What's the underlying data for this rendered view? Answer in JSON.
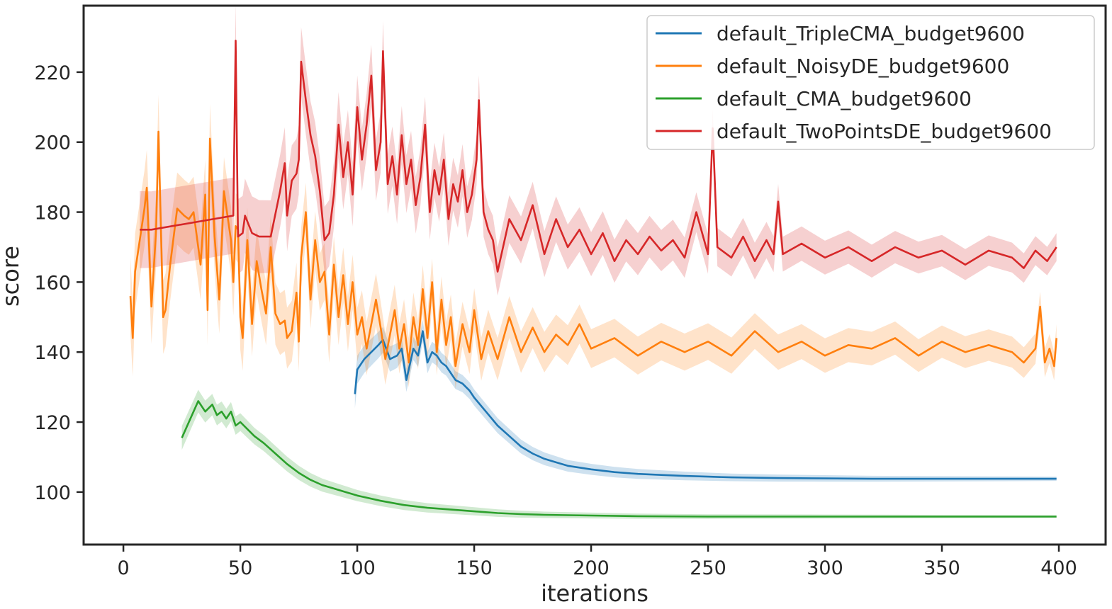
{
  "chart_data": {
    "type": "line",
    "title": "",
    "xlabel": "iterations",
    "ylabel": "score",
    "xlim": [
      -17,
      420
    ],
    "ylim": [
      85,
      239
    ],
    "xticks": [
      0,
      50,
      100,
      150,
      200,
      250,
      300,
      350,
      400
    ],
    "yticks": [
      100,
      120,
      140,
      160,
      180,
      200,
      220
    ],
    "grid": false,
    "legend_position": "top-right",
    "band": "shaded confidence band around each series",
    "series": [
      {
        "name": "default_TripleCMA_budget9600",
        "color": "#1f77b4",
        "points": [
          [
            99,
            128
          ],
          [
            100,
            135
          ],
          [
            103,
            138
          ],
          [
            106,
            140
          ],
          [
            109,
            142
          ],
          [
            111,
            143.5
          ],
          [
            114,
            138
          ],
          [
            117,
            139
          ],
          [
            119,
            141
          ],
          [
            121,
            132
          ],
          [
            124,
            141
          ],
          [
            126,
            139
          ],
          [
            128,
            146
          ],
          [
            130,
            137
          ],
          [
            132,
            140
          ],
          [
            134,
            139
          ],
          [
            136,
            137
          ],
          [
            138,
            136
          ],
          [
            140,
            134
          ],
          [
            142,
            132
          ],
          [
            145,
            131
          ],
          [
            148,
            129
          ],
          [
            150,
            127
          ],
          [
            155,
            123
          ],
          [
            160,
            119
          ],
          [
            165,
            116
          ],
          [
            170,
            113
          ],
          [
            175,
            111
          ],
          [
            180,
            109.5
          ],
          [
            185,
            108.5
          ],
          [
            190,
            107.5
          ],
          [
            200,
            106.5
          ],
          [
            210,
            105.7
          ],
          [
            220,
            105.2
          ],
          [
            230,
            104.9
          ],
          [
            240,
            104.6
          ],
          [
            250,
            104.4
          ],
          [
            260,
            104.2
          ],
          [
            280,
            104
          ],
          [
            300,
            103.9
          ],
          [
            320,
            103.8
          ],
          [
            350,
            103.8
          ],
          [
            380,
            103.8
          ],
          [
            399,
            103.8
          ]
        ]
      },
      {
        "name": "default_NoisyDE_budget9600",
        "color": "#ff7f0e",
        "points": [
          [
            3,
            156
          ],
          [
            4,
            144
          ],
          [
            5,
            163
          ],
          [
            9,
            181
          ],
          [
            10,
            187
          ],
          [
            12,
            153
          ],
          [
            14,
            175
          ],
          [
            15,
            203
          ],
          [
            17,
            150
          ],
          [
            18,
            152
          ],
          [
            20,
            165
          ],
          [
            23,
            181
          ],
          [
            26,
            179
          ],
          [
            28,
            178
          ],
          [
            30,
            180
          ],
          [
            33,
            165
          ],
          [
            35,
            185
          ],
          [
            36,
            152
          ],
          [
            37,
            201
          ],
          [
            39,
            173
          ],
          [
            41,
            155
          ],
          [
            43,
            186
          ],
          [
            46,
            172
          ],
          [
            47,
            160
          ],
          [
            48,
            176
          ],
          [
            49,
            175
          ],
          [
            50,
            150
          ],
          [
            51,
            144
          ],
          [
            53,
            172
          ],
          [
            55,
            148
          ],
          [
            57,
            166
          ],
          [
            59,
            158
          ],
          [
            61,
            151
          ],
          [
            63,
            170
          ],
          [
            65,
            151
          ],
          [
            67,
            148
          ],
          [
            69,
            149
          ],
          [
            70,
            144
          ],
          [
            72,
            146
          ],
          [
            74,
            157
          ],
          [
            75,
            143
          ],
          [
            76,
            167
          ],
          [
            78,
            180
          ],
          [
            80,
            155
          ],
          [
            82,
            172
          ],
          [
            84,
            160
          ],
          [
            86,
            163
          ],
          [
            88,
            145
          ],
          [
            90,
            165
          ],
          [
            92,
            150
          ],
          [
            94,
            162
          ],
          [
            96,
            148
          ],
          [
            98,
            160
          ],
          [
            100,
            145
          ],
          [
            102,
            150
          ],
          [
            104,
            141
          ],
          [
            106,
            148
          ],
          [
            108,
            155
          ],
          [
            110,
            147
          ],
          [
            112,
            138
          ],
          [
            114,
            145
          ],
          [
            116,
            152
          ],
          [
            118,
            141
          ],
          [
            120,
            148
          ],
          [
            122,
            137
          ],
          [
            124,
            150
          ],
          [
            126,
            142
          ],
          [
            128,
            158
          ],
          [
            130,
            144
          ],
          [
            132,
            160
          ],
          [
            134,
            140
          ],
          [
            136,
            155
          ],
          [
            138,
            142
          ],
          [
            140,
            150
          ],
          [
            142,
            136
          ],
          [
            145,
            148
          ],
          [
            148,
            140
          ],
          [
            150,
            152
          ],
          [
            153,
            138
          ],
          [
            156,
            146
          ],
          [
            160,
            138
          ],
          [
            165,
            150
          ],
          [
            170,
            140
          ],
          [
            175,
            147
          ],
          [
            180,
            140
          ],
          [
            185,
            145
          ],
          [
            190,
            142
          ],
          [
            195,
            148
          ],
          [
            200,
            141
          ],
          [
            210,
            144
          ],
          [
            220,
            139
          ],
          [
            230,
            143
          ],
          [
            240,
            140
          ],
          [
            250,
            143
          ],
          [
            260,
            139
          ],
          [
            270,
            146
          ],
          [
            280,
            140
          ],
          [
            290,
            143
          ],
          [
            300,
            139
          ],
          [
            310,
            142
          ],
          [
            320,
            141
          ],
          [
            330,
            144
          ],
          [
            340,
            139
          ],
          [
            350,
            143
          ],
          [
            360,
            140
          ],
          [
            370,
            142
          ],
          [
            380,
            140
          ],
          [
            385,
            137
          ],
          [
            390,
            141
          ],
          [
            392,
            153
          ],
          [
            394,
            137
          ],
          [
            396,
            141
          ],
          [
            398,
            136
          ],
          [
            399,
            144
          ]
        ]
      },
      {
        "name": "default_CMA_budget9600",
        "color": "#2ca02c",
        "points": [
          [
            25,
            115.5
          ],
          [
            28,
            120
          ],
          [
            32,
            126
          ],
          [
            35,
            123
          ],
          [
            38,
            125
          ],
          [
            40,
            122
          ],
          [
            42,
            123
          ],
          [
            44,
            121
          ],
          [
            46,
            123
          ],
          [
            48,
            119
          ],
          [
            50,
            120
          ],
          [
            53,
            118
          ],
          [
            56,
            116
          ],
          [
            60,
            114
          ],
          [
            65,
            111
          ],
          [
            70,
            108
          ],
          [
            75,
            105.5
          ],
          [
            80,
            103.5
          ],
          [
            85,
            102
          ],
          [
            90,
            101
          ],
          [
            95,
            100
          ],
          [
            100,
            99
          ],
          [
            110,
            97.5
          ],
          [
            120,
            96.3
          ],
          [
            130,
            95.5
          ],
          [
            140,
            95
          ],
          [
            150,
            94.5
          ],
          [
            160,
            94
          ],
          [
            170,
            93.7
          ],
          [
            180,
            93.5
          ],
          [
            200,
            93.3
          ],
          [
            220,
            93.1
          ],
          [
            250,
            93
          ],
          [
            300,
            93
          ],
          [
            350,
            93
          ],
          [
            399,
            93
          ]
        ]
      },
      {
        "name": "default_TwoPointsDE_budget9600",
        "color": "#d62728",
        "points": [
          [
            7,
            175
          ],
          [
            12,
            175
          ],
          [
            47,
            179
          ],
          [
            48,
            229
          ],
          [
            49,
            173
          ],
          [
            51,
            174
          ],
          [
            52,
            179
          ],
          [
            55,
            174
          ],
          [
            58,
            173
          ],
          [
            63,
            173
          ],
          [
            67,
            186
          ],
          [
            69,
            194
          ],
          [
            70,
            179
          ],
          [
            72,
            189
          ],
          [
            74,
            191
          ],
          [
            75,
            195
          ],
          [
            76,
            223
          ],
          [
            78,
            212
          ],
          [
            80,
            202
          ],
          [
            82,
            196
          ],
          [
            84,
            186
          ],
          [
            86,
            172
          ],
          [
            88,
            174
          ],
          [
            90,
            185
          ],
          [
            92,
            205
          ],
          [
            94,
            190
          ],
          [
            96,
            200
          ],
          [
            98,
            185
          ],
          [
            100,
            210
          ],
          [
            102,
            195
          ],
          [
            104,
            205
          ],
          [
            106,
            219
          ],
          [
            108,
            192
          ],
          [
            110,
            200
          ],
          [
            111,
            226
          ],
          [
            113,
            188
          ],
          [
            115,
            196
          ],
          [
            117,
            185
          ],
          [
            119,
            202
          ],
          [
            121,
            188
          ],
          [
            123,
            195
          ],
          [
            125,
            182
          ],
          [
            127,
            190
          ],
          [
            129,
            205
          ],
          [
            131,
            180
          ],
          [
            133,
            192
          ],
          [
            135,
            185
          ],
          [
            137,
            195
          ],
          [
            139,
            178
          ],
          [
            141,
            188
          ],
          [
            143,
            183
          ],
          [
            145,
            192
          ],
          [
            147,
            180
          ],
          [
            149,
            185
          ],
          [
            151,
            195
          ],
          [
            152,
            212
          ],
          [
            154,
            180
          ],
          [
            156,
            175
          ],
          [
            158,
            172
          ],
          [
            160,
            163
          ],
          [
            165,
            178
          ],
          [
            170,
            172
          ],
          [
            175,
            182
          ],
          [
            180,
            168
          ],
          [
            185,
            178
          ],
          [
            190,
            170
          ],
          [
            195,
            175
          ],
          [
            200,
            168
          ],
          [
            205,
            174
          ],
          [
            210,
            166
          ],
          [
            215,
            172
          ],
          [
            220,
            168
          ],
          [
            225,
            173
          ],
          [
            230,
            169
          ],
          [
            235,
            172
          ],
          [
            240,
            167
          ],
          [
            245,
            180
          ],
          [
            250,
            168
          ],
          [
            252,
            204
          ],
          [
            254,
            170
          ],
          [
            260,
            167
          ],
          [
            265,
            173
          ],
          [
            270,
            166
          ],
          [
            275,
            172
          ],
          [
            278,
            168
          ],
          [
            280,
            183
          ],
          [
            282,
            168
          ],
          [
            290,
            171
          ],
          [
            300,
            167
          ],
          [
            310,
            170
          ],
          [
            320,
            166
          ],
          [
            330,
            170
          ],
          [
            340,
            167
          ],
          [
            350,
            169
          ],
          [
            360,
            165
          ],
          [
            370,
            169
          ],
          [
            380,
            167
          ],
          [
            385,
            164
          ],
          [
            390,
            169
          ],
          [
            395,
            166
          ],
          [
            399,
            170
          ]
        ]
      }
    ]
  }
}
